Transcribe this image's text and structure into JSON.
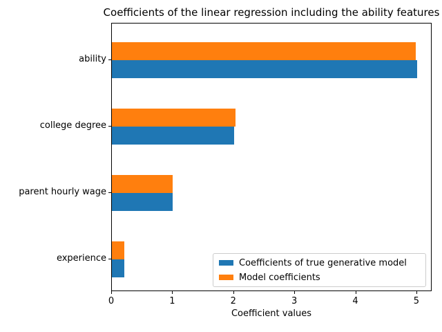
{
  "chart_data": {
    "type": "bar",
    "orientation": "horizontal",
    "title": "Coefficients of the linear regression including the ability features",
    "xlabel": "Coefficient values",
    "categories": [
      "ability",
      "college degree",
      "parent hourly wage",
      "experience"
    ],
    "series": [
      {
        "name": "Coefficients of true generative model",
        "color": "#1f77b4",
        "values": [
          5.0,
          2.0,
          1.0,
          0.2
        ]
      },
      {
        "name": "Model coefficients",
        "color": "#ff7f0e",
        "values": [
          4.98,
          2.02,
          1.0,
          0.2
        ]
      }
    ],
    "xticks": [
      0,
      1,
      2,
      3,
      4,
      5
    ],
    "xlim": [
      0,
      5.25
    ],
    "grid": false,
    "legend_position": "lower right",
    "notes": "Within each category group the orange (Model coefficients) bar is drawn above the blue (true generative model) bar; title text is clipped at the right edge of the figure."
  },
  "colors": {
    "background": "#ffffff",
    "spine": "#000000",
    "legend_border": "#cccccc",
    "series_blue": "#1f77b4",
    "series_orange": "#ff7f0e"
  }
}
